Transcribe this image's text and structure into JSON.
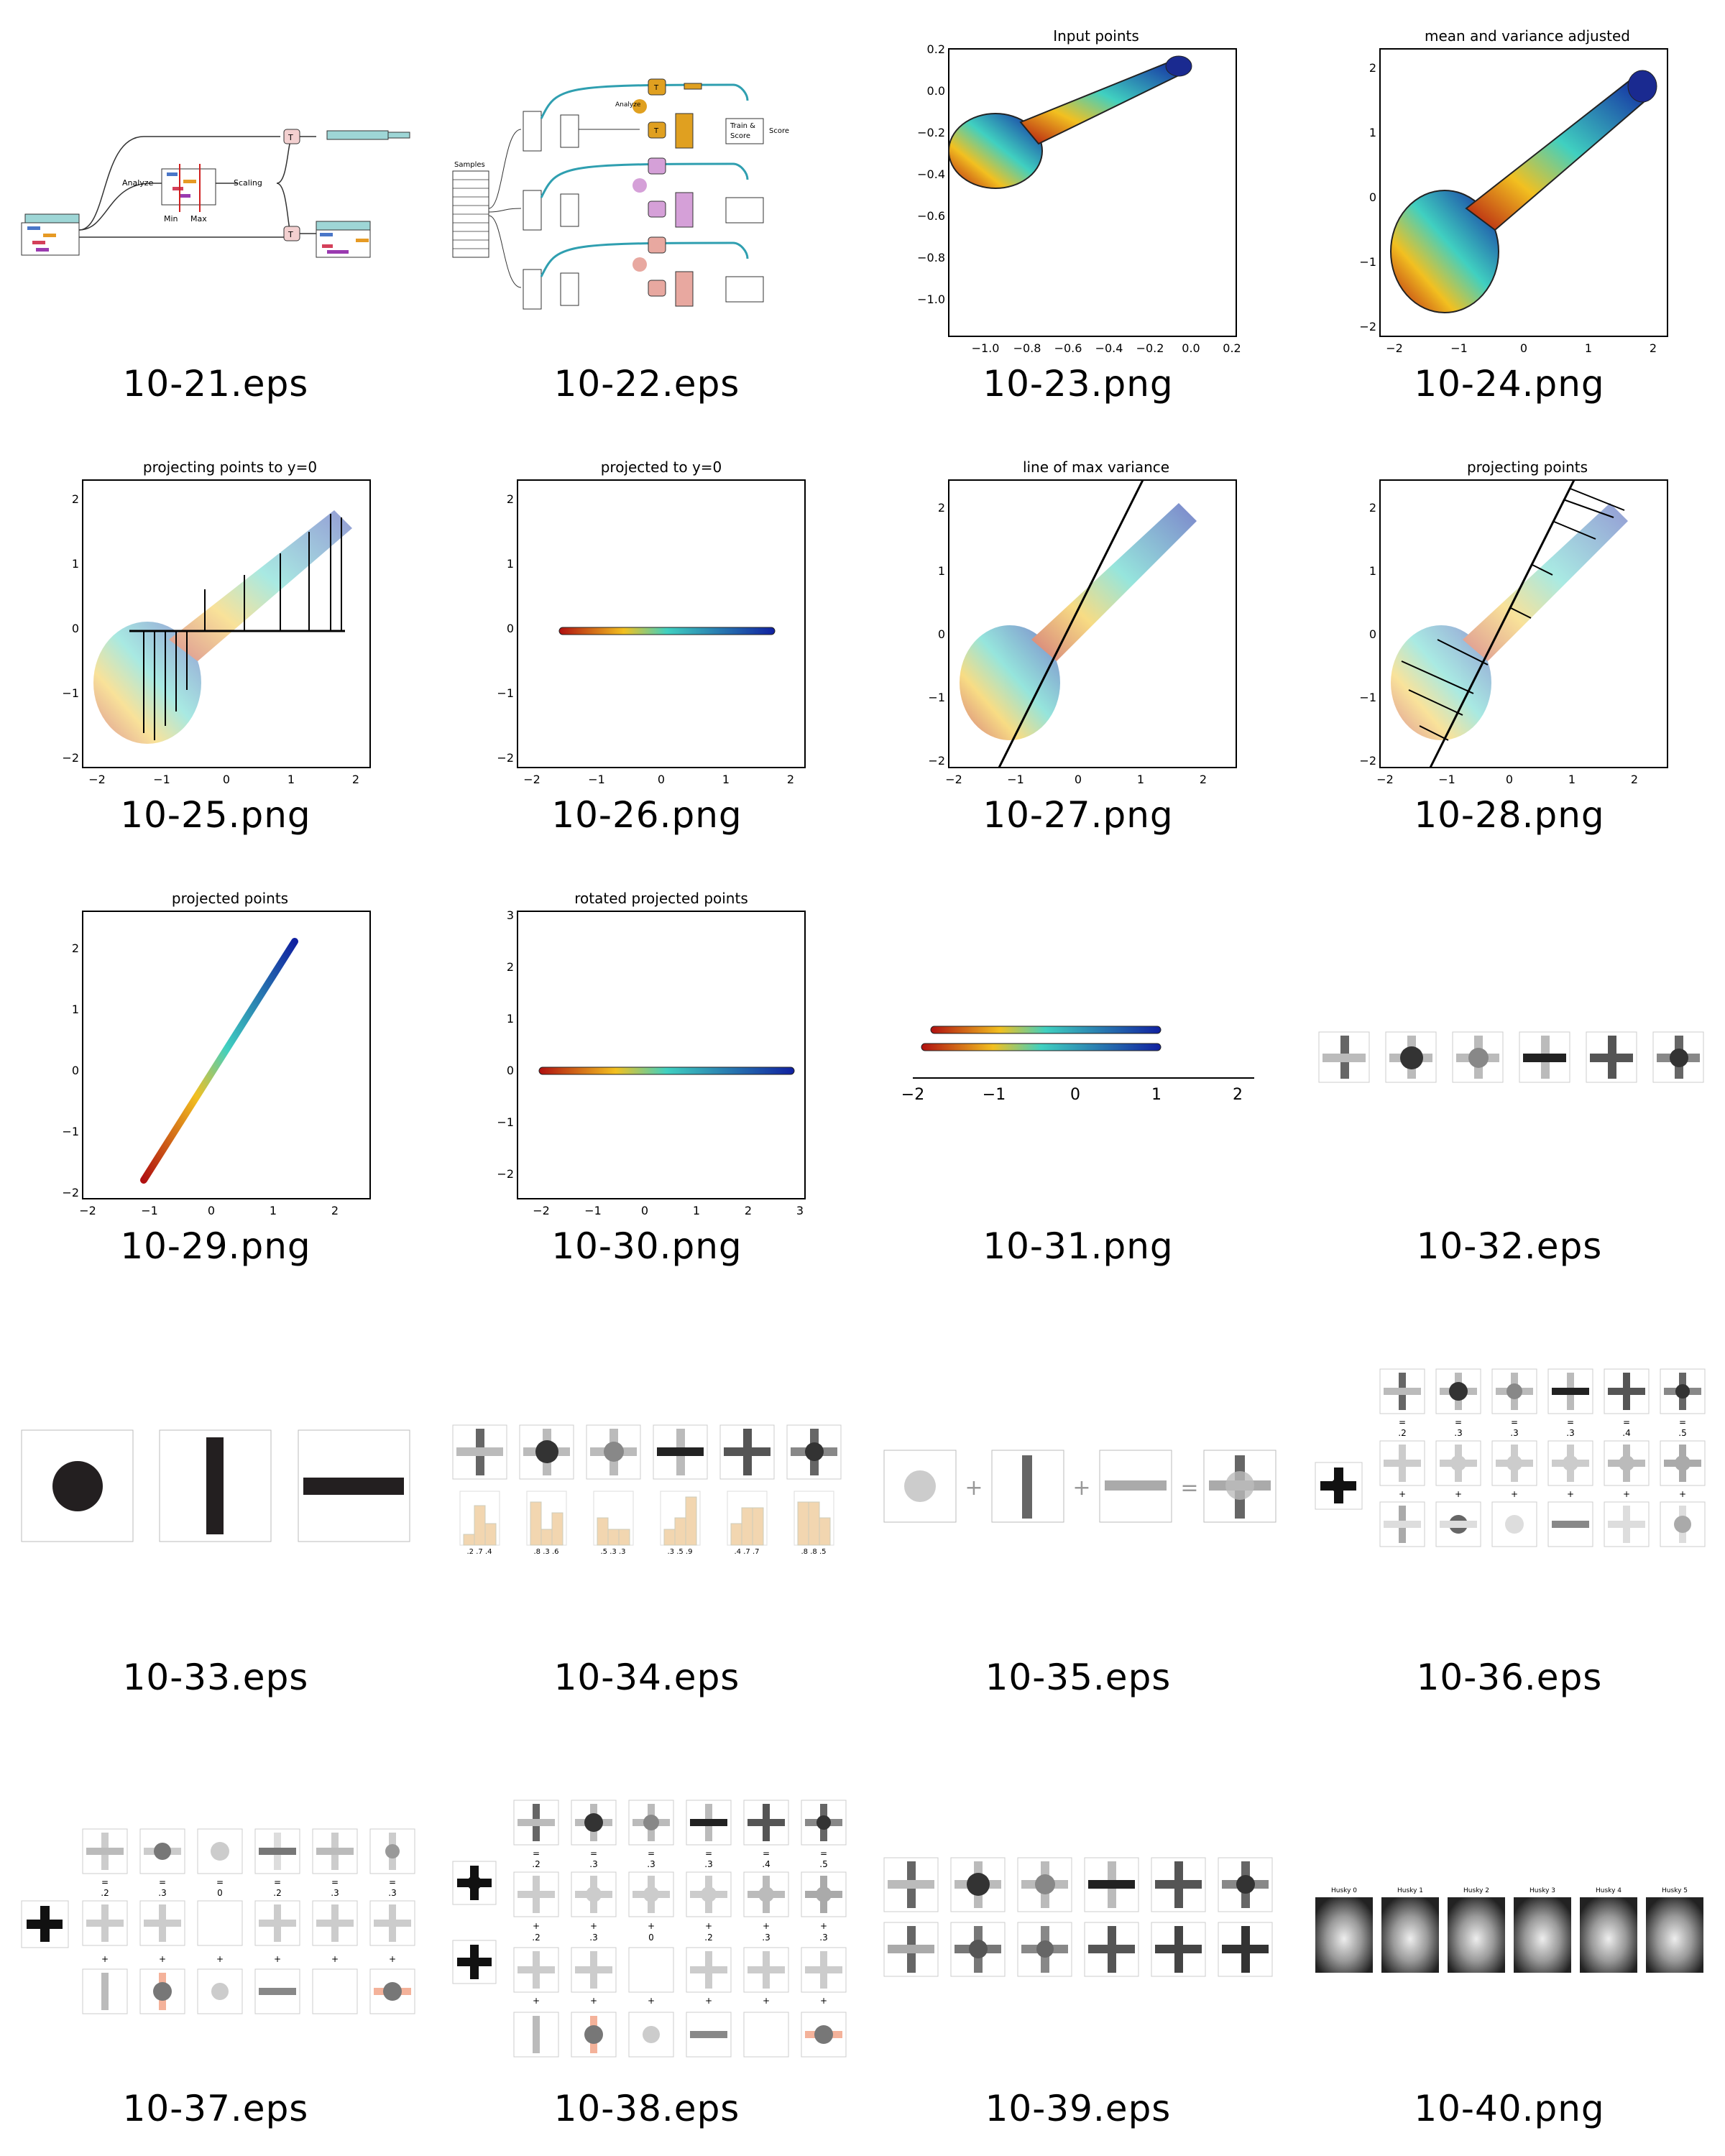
{
  "gallery": {
    "items": [
      {
        "filename": "10-21.eps",
        "labels": {
          "analyze": "Analyze",
          "scaling": "Scaling",
          "min": "Min",
          "max": "Max",
          "t": "T"
        }
      },
      {
        "filename": "10-22.eps",
        "labels": {
          "samples": "Samples",
          "analyze": "Analyze",
          "train": "Train &",
          "score_box": "Score",
          "score": "Score",
          "t": "T"
        }
      },
      {
        "filename": "10-23.png",
        "title": "Input points",
        "xticks": [
          "−1.0",
          "−0.8",
          "−0.6",
          "−0.4",
          "−0.2",
          "0.0",
          "0.2"
        ],
        "yticks": [
          "0.2",
          "0.0",
          "−0.2",
          "−0.4",
          "−0.6",
          "−0.8",
          "−1.0"
        ]
      },
      {
        "filename": "10-24.png",
        "title": "mean and variance adjusted",
        "xticks": [
          "−2",
          "−1",
          "0",
          "1",
          "2"
        ],
        "yticks": [
          "2",
          "1",
          "0",
          "−1",
          "−2"
        ]
      },
      {
        "filename": "10-25.png",
        "title": "projecting points to y=0",
        "xticks": [
          "−2",
          "−1",
          "0",
          "1",
          "2"
        ],
        "yticks": [
          "2",
          "1",
          "0",
          "−1",
          "−2"
        ]
      },
      {
        "filename": "10-26.png",
        "title": "projected to y=0",
        "xticks": [
          "−2",
          "−1",
          "0",
          "1",
          "2"
        ],
        "yticks": [
          "2",
          "1",
          "0",
          "−1",
          "−2"
        ]
      },
      {
        "filename": "10-27.png",
        "title": "line of max variance",
        "xticks": [
          "−2",
          "−1",
          "0",
          "1",
          "2"
        ],
        "yticks": [
          "2",
          "1",
          "0",
          "−1",
          "−2"
        ]
      },
      {
        "filename": "10-28.png",
        "title": "projecting points",
        "xticks": [
          "−2",
          "−1",
          "0",
          "1",
          "2"
        ],
        "yticks": [
          "2",
          "1",
          "0",
          "−1",
          "−2"
        ]
      },
      {
        "filename": "10-29.png",
        "title": "projected points",
        "xticks": [
          "−2",
          "−1",
          "0",
          "1",
          "2"
        ],
        "yticks": [
          "2",
          "1",
          "0",
          "−1",
          "−2"
        ]
      },
      {
        "filename": "10-30.png",
        "title": "rotated projected points",
        "xticks": [
          "−2",
          "−1",
          "0",
          "1",
          "2",
          "3"
        ],
        "yticks": [
          "3",
          "2",
          "1",
          "0",
          "−1",
          "−2"
        ]
      },
      {
        "filename": "10-31.png",
        "xticks": [
          "−2",
          "−1",
          "0",
          "1",
          "2"
        ]
      },
      {
        "filename": "10-32.eps"
      },
      {
        "filename": "10-33.eps"
      },
      {
        "filename": "10-34.eps",
        "bar_labels": [
          ".2 .7 .4",
          ".8 .3 .6",
          ".5 .3 .3",
          ".3 .5 .9",
          ".4 .7 .7",
          ".8 .8 .5"
        ]
      },
      {
        "filename": "10-35.eps",
        "ops": {
          "plus": "+",
          "equals": "="
        }
      },
      {
        "filename": "10-36.eps",
        "coef": [
          ".2",
          ".3",
          ".3",
          ".3",
          ".4",
          ".5"
        ],
        "ops": {
          "equals": "=",
          "plus": "+"
        }
      },
      {
        "filename": "10-37.eps",
        "coef1": [
          ".2",
          ".3",
          "0",
          ".2",
          ".3",
          ".3"
        ],
        "ops": {
          "equals": "=",
          "plus": "+"
        }
      },
      {
        "filename": "10-38.eps",
        "coef1": [
          ".2",
          ".3",
          ".3",
          ".3",
          ".4",
          ".5"
        ],
        "coef2": [
          ".2",
          ".3",
          "0",
          ".2",
          ".3",
          ".3"
        ],
        "ops": {
          "equals": "=",
          "plus": "+"
        }
      },
      {
        "filename": "10-39.eps"
      },
      {
        "filename": "10-40.png",
        "husky_labels": [
          "Husky 0",
          "Husky 1",
          "Husky 2",
          "Husky 3",
          "Husky 4",
          "Husky 5"
        ]
      }
    ]
  }
}
